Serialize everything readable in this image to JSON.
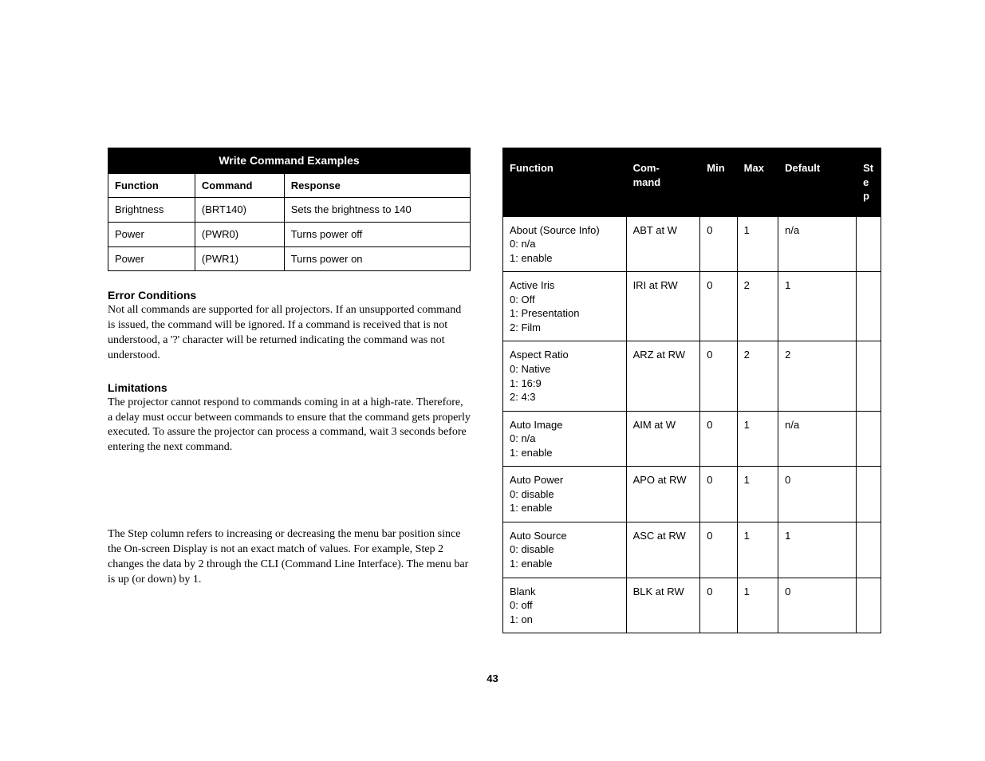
{
  "writeTable": {
    "title": "Write Command Examples",
    "headers": [
      "Function",
      "Command",
      "Response"
    ],
    "rows": [
      [
        "Brightness",
        "(BRT140)",
        "Sets the brightness to 140"
      ],
      [
        "Power",
        "(PWR0)",
        "Turns power off"
      ],
      [
        "Power",
        "(PWR1)",
        "Turns power on"
      ]
    ]
  },
  "errorHeading": "Error Conditions",
  "errorBody": "Not all commands are supported for all projectors. If an unsupported command is issued, the command will be ignored. If a command is received that is not understood, a '?' character will be returned indicating the command was not understood.",
  "limitHeading": "Limitations",
  "limitBody": "The projector cannot respond to commands coming in at a high-rate. Therefore, a delay must occur between commands to ensure that the command gets properly executed. To assure the projector can process a command, wait 3 seconds before entering the next command.",
  "stepNote": "The Step column refers to increasing or decreasing the menu bar position since the On-screen Display is not an exact match of values. For example, Step 2 changes the data by 2 through the CLI (Command Line Interface). The menu bar is up (or down) by 1.",
  "funcTable": {
    "headers": [
      "Function",
      "Com-\nmand",
      "Min",
      "Max",
      "Default",
      "St\ne\np"
    ],
    "rows": [
      {
        "func": "About (Source Info)\n0: n/a\n1: enable",
        "cmd": "ABT at W",
        "min": "0",
        "max": "1",
        "def": "n/a",
        "step": ""
      },
      {
        "func": "Active Iris\n0: Off\n1: Presentation\n2: Film",
        "cmd": "IRI at RW",
        "min": "0",
        "max": "2",
        "def": "1",
        "step": ""
      },
      {
        "func": "Aspect Ratio\n0: Native\n1: 16:9\n2: 4:3",
        "cmd": "ARZ at RW",
        "min": "0",
        "max": "2",
        "def": "2",
        "step": ""
      },
      {
        "func": "Auto Image\n0: n/a\n1: enable",
        "cmd": "AIM at W",
        "min": "0",
        "max": "1",
        "def": "n/a",
        "step": ""
      },
      {
        "func": "Auto Power\n0: disable\n1: enable",
        "cmd": "APO at RW",
        "min": "0",
        "max": "1",
        "def": "0",
        "step": ""
      },
      {
        "func": "Auto Source\n0: disable\n1: enable",
        "cmd": "ASC at RW",
        "min": "0",
        "max": "1",
        "def": "1",
        "step": ""
      },
      {
        "func": "Blank\n0: off\n1: on",
        "cmd": "BLK at RW",
        "min": "0",
        "max": "1",
        "def": "0",
        "step": ""
      }
    ]
  },
  "pageNumber": "43"
}
